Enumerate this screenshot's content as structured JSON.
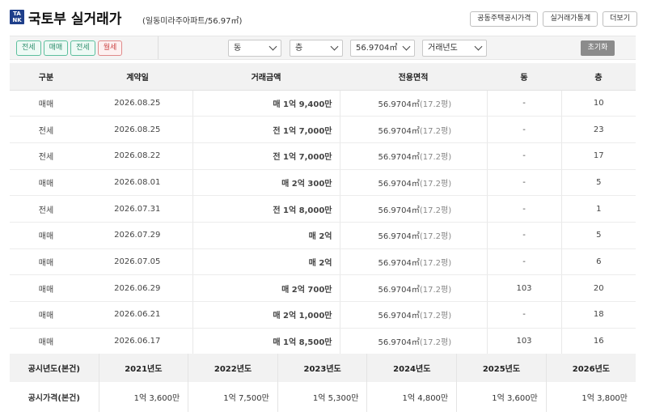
{
  "header": {
    "logo_text": "TA\nNK",
    "title": "국토부 실거래가",
    "subtitle": "(일동미라주아파트/56.97㎡)",
    "buttons": [
      "공동주택공시가격",
      "실거래가통계",
      "더보기"
    ]
  },
  "filters": {
    "chips": [
      {
        "label": "전세",
        "style": "green"
      },
      {
        "label": "매매",
        "style": "green"
      },
      {
        "label": "전세",
        "style": "green"
      },
      {
        "label": "월세",
        "style": "red"
      }
    ],
    "dong": "동",
    "floor": "층",
    "area": "56.9704㎡",
    "year": "거래년도",
    "reset_label": "초기화"
  },
  "table": {
    "headers": [
      "구분",
      "계약일",
      "거래금액",
      "전용면적",
      "동",
      "층"
    ],
    "rows": [
      {
        "type": "매매",
        "date": "2026.08.25",
        "price": "매 1억 9,400만",
        "kind": "buy",
        "area": "56.9704㎡",
        "pyeong": "(17.2평)",
        "dong": "-",
        "floor": "10"
      },
      {
        "type": "전세",
        "date": "2026.08.25",
        "price": "전 1억 7,000만",
        "kind": "jeonse",
        "area": "56.9704㎡",
        "pyeong": "(17.2평)",
        "dong": "-",
        "floor": "23"
      },
      {
        "type": "전세",
        "date": "2026.08.22",
        "price": "전 1억 7,000만",
        "kind": "jeonse",
        "area": "56.9704㎡",
        "pyeong": "(17.2평)",
        "dong": "-",
        "floor": "17"
      },
      {
        "type": "매매",
        "date": "2026.08.01",
        "price": "매 2억 300만",
        "kind": "buy",
        "area": "56.9704㎡",
        "pyeong": "(17.2평)",
        "dong": "-",
        "floor": "5"
      },
      {
        "type": "전세",
        "date": "2026.07.31",
        "price": "전 1억 8,000만",
        "kind": "jeonse",
        "area": "56.9704㎡",
        "pyeong": "(17.2평)",
        "dong": "-",
        "floor": "1"
      },
      {
        "type": "매매",
        "date": "2026.07.29",
        "price": "매 2억",
        "kind": "buy",
        "area": "56.9704㎡",
        "pyeong": "(17.2평)",
        "dong": "-",
        "floor": "5"
      },
      {
        "type": "매매",
        "date": "2026.07.05",
        "price": "매 2억",
        "kind": "buy",
        "area": "56.9704㎡",
        "pyeong": "(17.2평)",
        "dong": "-",
        "floor": "6"
      },
      {
        "type": "매매",
        "date": "2026.06.29",
        "price": "매 2억 700만",
        "kind": "buy",
        "area": "56.9704㎡",
        "pyeong": "(17.2평)",
        "dong": "103",
        "floor": "20"
      },
      {
        "type": "매매",
        "date": "2026.06.21",
        "price": "매 2억 1,000만",
        "kind": "buy",
        "area": "56.9704㎡",
        "pyeong": "(17.2평)",
        "dong": "-",
        "floor": "18"
      },
      {
        "type": "매매",
        "date": "2026.06.17",
        "price": "매 1억 8,500만",
        "kind": "buy",
        "area": "56.9704㎡",
        "pyeong": "(17.2평)",
        "dong": "103",
        "floor": "16"
      }
    ]
  },
  "official": {
    "year_label": "공시년도(본건)",
    "price_label": "공시가격(본건)",
    "years": [
      "2021년도",
      "2022년도",
      "2023년도",
      "2024년도",
      "2025년도",
      "2026년도"
    ],
    "prices": [
      "1억 3,600만",
      "1억 7,500만",
      "1억 5,300만",
      "1억 4,800만",
      "1억 3,600만",
      "1억 3,800만"
    ]
  },
  "colors": {
    "buy": "#2f5bd6",
    "jeonse": "#2aa52a",
    "reset_bg": "#8b8b8b",
    "logo_bg": "#1f3f8a"
  }
}
